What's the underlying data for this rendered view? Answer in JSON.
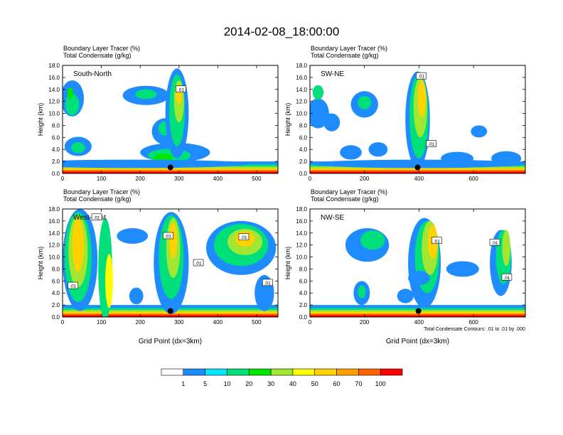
{
  "page_title": "2014-02-08_18:00:00",
  "colors": {
    "levels": [
      "#ffffff",
      "#1e8cff",
      "#00e6ff",
      "#00e07a",
      "#00e600",
      "#a0e632",
      "#ffff00",
      "#ffd200",
      "#ffa000",
      "#ff6400",
      "#ff0000"
    ],
    "contour": "#000000",
    "frame": "#000000"
  },
  "chart_data": [
    {
      "type": "heatmap",
      "id": "south-north",
      "title_line1": "Boundary Layer Tracer   (%)",
      "title_line2": "Total Condensate   (g/kg)",
      "panel_label": "South-North",
      "ylabel": "Height (km)",
      "xlabel": "",
      "xlim": [
        0,
        555
      ],
      "ylim": [
        0,
        18
      ],
      "xticks": [
        0,
        100,
        200,
        300,
        400,
        500
      ],
      "yticks": [
        0.0,
        2.0,
        4.0,
        6.0,
        8.0,
        10.0,
        12.0,
        14.0,
        16.0,
        18.0
      ],
      "contour_labels": [
        {
          "x": 305,
          "y": 14.0,
          "text": ".01"
        }
      ],
      "marker": {
        "x": 278,
        "y": 1.0
      }
    },
    {
      "type": "heatmap",
      "id": "sw-ne",
      "title_line1": "Boundary Layer Tracer   (%)",
      "title_line2": "Total Condensate   (g/kg)",
      "panel_label": "SW-NE",
      "ylabel": "Height (km)",
      "xlabel": "",
      "xlim": [
        0,
        790
      ],
      "ylim": [
        0,
        18
      ],
      "xticks": [
        0,
        200,
        400,
        600
      ],
      "yticks": [
        0.0,
        2.0,
        4.0,
        6.0,
        8.0,
        10.0,
        12.0,
        14.0,
        16.0,
        18.0
      ],
      "contour_labels": [
        {
          "x": 408,
          "y": 16.2,
          "text": ".01"
        },
        {
          "x": 445,
          "y": 4.9,
          "text": ".01"
        }
      ],
      "marker": {
        "x": 395,
        "y": 1.0
      }
    },
    {
      "type": "heatmap",
      "id": "west-east",
      "title_line1": "Boundary Layer Tracer   (%)",
      "title_line2": "Total Condensate   (g/kg)",
      "panel_label": "West-East",
      "ylabel": "Height (km)",
      "xlabel": "Grid Point (dx=3km)",
      "xlim": [
        0,
        555
      ],
      "ylim": [
        0,
        18
      ],
      "xticks": [
        0,
        100,
        200,
        300,
        400,
        500
      ],
      "yticks": [
        0.0,
        2.0,
        4.0,
        6.0,
        8.0,
        10.0,
        12.0,
        14.0,
        16.0,
        18.0
      ],
      "contour_labels": [
        {
          "x": 88,
          "y": 16.6,
          "text": ".01"
        },
        {
          "x": 27,
          "y": 5.2,
          "text": ".01"
        },
        {
          "x": 272,
          "y": 13.5,
          "text": ".01"
        },
        {
          "x": 350,
          "y": 9.0,
          "text": ".01"
        },
        {
          "x": 467,
          "y": 13.3,
          "text": ".01"
        },
        {
          "x": 528,
          "y": 5.7,
          "text": ".01"
        }
      ],
      "marker": {
        "x": 278,
        "y": 1.0
      }
    },
    {
      "type": "heatmap",
      "id": "nw-se",
      "title_line1": "Boundary Layer Tracer   (%)",
      "title_line2": "Total Condensate   (g/kg)",
      "panel_label": "NW-SE",
      "ylabel": "Height (km)",
      "xlabel": "Grid Point (dx=3km)",
      "footnote": "Total Condensate Contours: .01 to .01 by .000",
      "xlim": [
        0,
        790
      ],
      "ylim": [
        0,
        18
      ],
      "xticks": [
        0,
        200,
        400,
        600
      ],
      "yticks": [
        0.0,
        2.0,
        4.0,
        6.0,
        8.0,
        10.0,
        12.0,
        14.0,
        16.0,
        18.0
      ],
      "contour_labels": [
        {
          "x": 465,
          "y": 12.7,
          "text": ".01"
        },
        {
          "x": 678,
          "y": 12.4,
          "text": ".01"
        },
        {
          "x": 722,
          "y": 6.6,
          "text": ".01"
        }
      ],
      "marker": {
        "x": 398,
        "y": 1.0
      }
    }
  ],
  "colorbar": {
    "labels": [
      "1",
      "5",
      "10",
      "20",
      "30",
      "40",
      "50",
      "60",
      "70",
      "100"
    ]
  }
}
